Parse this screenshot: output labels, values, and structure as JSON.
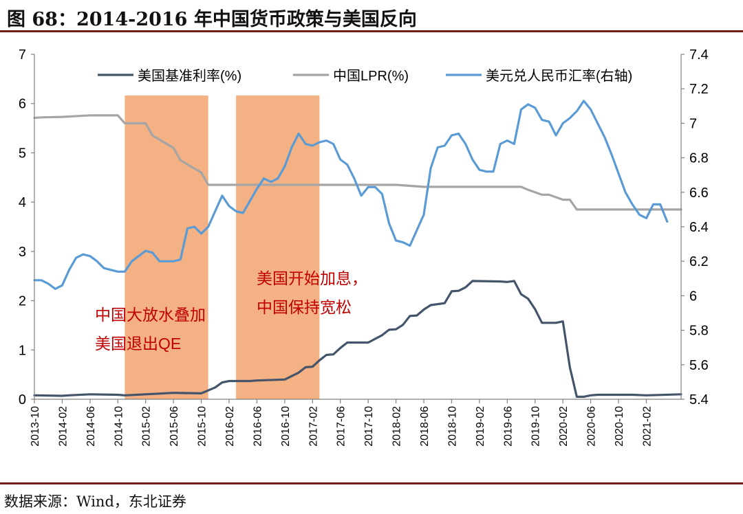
{
  "figure": {
    "title": "图 68：2014-2016 年中国货币政策与美国反向",
    "source": "数据来源：Wind，东北证券"
  },
  "colors": {
    "us_rate": "#44546a",
    "china_lpr": "#a5a5a5",
    "usdcny": "#5b9bd5",
    "shade": "#f4b183",
    "annotation": "#c00000",
    "frame": "#7a1a1a"
  },
  "chart_data": {
    "type": "line",
    "x_ticks": [
      "2013-10",
      "2014-02",
      "2014-06",
      "2014-10",
      "2015-02",
      "2015-06",
      "2015-10",
      "2016-02",
      "2016-06",
      "2016-10",
      "2017-02",
      "2017-06",
      "2017-10",
      "2018-02",
      "2018-06",
      "2018-10",
      "2019-02",
      "2019-06",
      "2019-10",
      "2020-02",
      "2020-06",
      "2020-10",
      "2021-02"
    ],
    "x_range": [
      "2013-10",
      "2021-07"
    ],
    "y_left": {
      "range": [
        0,
        7
      ],
      "ticks": [
        "0",
        "1",
        "2",
        "3",
        "4",
        "5",
        "6",
        "7"
      ]
    },
    "y_right": {
      "range": [
        5.4,
        7.4
      ],
      "ticks": [
        "5.4",
        "5.6",
        "5.8",
        "6",
        "6.2",
        "6.4",
        "6.6",
        "6.8",
        "7",
        "7.2",
        "7.4"
      ]
    },
    "grid": false,
    "legend_position": "top",
    "shaded_periods": [
      {
        "start": "2014-11",
        "end": "2015-11",
        "label_lines": [
          "中国大放水叠加",
          "美国退出QE"
        ],
        "label_side": "left"
      },
      {
        "start": "2016-03",
        "end": "2017-03",
        "label_lines": [
          "美国开始加息，",
          "中国保持宽松"
        ],
        "label_side": "inside"
      }
    ],
    "series": [
      {
        "name": "美国基准利率(%)",
        "axis": "left",
        "color_key": "us_rate",
        "points": [
          [
            "2013-10",
            0.08
          ],
          [
            "2014-02",
            0.07
          ],
          [
            "2014-03",
            0.08
          ],
          [
            "2014-06",
            0.1
          ],
          [
            "2014-10",
            0.09
          ],
          [
            "2014-11",
            0.08
          ],
          [
            "2015-02",
            0.1
          ],
          [
            "2015-06",
            0.13
          ],
          [
            "2015-10",
            0.12
          ],
          [
            "2015-12",
            0.24
          ],
          [
            "2016-01",
            0.34
          ],
          [
            "2016-02",
            0.37
          ],
          [
            "2016-05",
            0.37
          ],
          [
            "2016-06",
            0.38
          ],
          [
            "2016-10",
            0.4
          ],
          [
            "2016-12",
            0.54
          ],
          [
            "2017-01",
            0.65
          ],
          [
            "2017-02",
            0.66
          ],
          [
            "2017-03",
            0.79
          ],
          [
            "2017-04",
            0.9
          ],
          [
            "2017-05",
            0.91
          ],
          [
            "2017-06",
            1.04
          ],
          [
            "2017-07",
            1.15
          ],
          [
            "2017-10",
            1.15
          ],
          [
            "2017-12",
            1.3
          ],
          [
            "2018-01",
            1.41
          ],
          [
            "2018-02",
            1.42
          ],
          [
            "2018-03",
            1.51
          ],
          [
            "2018-04",
            1.69
          ],
          [
            "2018-05",
            1.7
          ],
          [
            "2018-06",
            1.82
          ],
          [
            "2018-07",
            1.91
          ],
          [
            "2018-09",
            1.95
          ],
          [
            "2018-10",
            2.19
          ],
          [
            "2018-11",
            2.2
          ],
          [
            "2018-12",
            2.27
          ],
          [
            "2019-01",
            2.4
          ],
          [
            "2019-05",
            2.39
          ],
          [
            "2019-06",
            2.38
          ],
          [
            "2019-07",
            2.4
          ],
          [
            "2019-08",
            2.13
          ],
          [
            "2019-09",
            2.04
          ],
          [
            "2019-10",
            1.83
          ],
          [
            "2019-11",
            1.55
          ],
          [
            "2020-01",
            1.55
          ],
          [
            "2020-02",
            1.58
          ],
          [
            "2020-03",
            0.65
          ],
          [
            "2020-04",
            0.05
          ],
          [
            "2020-05",
            0.05
          ],
          [
            "2020-06",
            0.08
          ],
          [
            "2020-07",
            0.09
          ],
          [
            "2020-10",
            0.09
          ],
          [
            "2020-12",
            0.09
          ],
          [
            "2021-02",
            0.08
          ],
          [
            "2021-07",
            0.1
          ]
        ]
      },
      {
        "name": "中国LPR(%)",
        "axis": "left",
        "color_key": "china_lpr",
        "points": [
          [
            "2013-10",
            5.71
          ],
          [
            "2013-11",
            5.72
          ],
          [
            "2014-02",
            5.73
          ],
          [
            "2014-06",
            5.76
          ],
          [
            "2014-10",
            5.76
          ],
          [
            "2014-11",
            5.6
          ],
          [
            "2014-12",
            5.6
          ],
          [
            "2015-02",
            5.6
          ],
          [
            "2015-03",
            5.35
          ],
          [
            "2015-06",
            5.1
          ],
          [
            "2015-07",
            4.85
          ],
          [
            "2015-10",
            4.6
          ],
          [
            "2015-11",
            4.35
          ],
          [
            "2016-02",
            4.35
          ],
          [
            "2016-10",
            4.35
          ],
          [
            "2017-02",
            4.35
          ],
          [
            "2017-06",
            4.35
          ],
          [
            "2017-10",
            4.35
          ],
          [
            "2018-02",
            4.35
          ],
          [
            "2018-06",
            4.31
          ],
          [
            "2018-10",
            4.31
          ],
          [
            "2019-02",
            4.31
          ],
          [
            "2019-06",
            4.31
          ],
          [
            "2019-08",
            4.31
          ],
          [
            "2019-09",
            4.25
          ],
          [
            "2019-10",
            4.2
          ],
          [
            "2019-11",
            4.15
          ],
          [
            "2019-12",
            4.15
          ],
          [
            "2020-02",
            4.05
          ],
          [
            "2020-03",
            4.05
          ],
          [
            "2020-04",
            3.85
          ],
          [
            "2020-06",
            3.85
          ],
          [
            "2020-10",
            3.85
          ],
          [
            "2021-02",
            3.85
          ],
          [
            "2021-07",
            3.85
          ]
        ]
      },
      {
        "name": "美元兑人民币汇率(右轴)",
        "axis": "right",
        "color_key": "usdcny",
        "points": [
          [
            "2013-10",
            6.09
          ],
          [
            "2013-11",
            6.09
          ],
          [
            "2013-12",
            6.07
          ],
          [
            "2014-01",
            6.04
          ],
          [
            "2014-02",
            6.06
          ],
          [
            "2014-03",
            6.15
          ],
          [
            "2014-04",
            6.22
          ],
          [
            "2014-05",
            6.24
          ],
          [
            "2014-06",
            6.23
          ],
          [
            "2014-07",
            6.2
          ],
          [
            "2014-08",
            6.16
          ],
          [
            "2014-09",
            6.15
          ],
          [
            "2014-10",
            6.14
          ],
          [
            "2014-11",
            6.14
          ],
          [
            "2014-12",
            6.2
          ],
          [
            "2015-01",
            6.23
          ],
          [
            "2015-02",
            6.26
          ],
          [
            "2015-03",
            6.25
          ],
          [
            "2015-04",
            6.2
          ],
          [
            "2015-05",
            6.2
          ],
          [
            "2015-06",
            6.2
          ],
          [
            "2015-07",
            6.21
          ],
          [
            "2015-08",
            6.39
          ],
          [
            "2015-09",
            6.4
          ],
          [
            "2015-10",
            6.36
          ],
          [
            "2015-11",
            6.4
          ],
          [
            "2015-12",
            6.49
          ],
          [
            "2016-01",
            6.58
          ],
          [
            "2016-02",
            6.52
          ],
          [
            "2016-03",
            6.49
          ],
          [
            "2016-04",
            6.48
          ],
          [
            "2016-05",
            6.55
          ],
          [
            "2016-06",
            6.62
          ],
          [
            "2016-07",
            6.68
          ],
          [
            "2016-08",
            6.66
          ],
          [
            "2016-09",
            6.68
          ],
          [
            "2016-10",
            6.75
          ],
          [
            "2016-11",
            6.86
          ],
          [
            "2016-12",
            6.94
          ],
          [
            "2017-01",
            6.88
          ],
          [
            "2017-02",
            6.87
          ],
          [
            "2017-03",
            6.89
          ],
          [
            "2017-04",
            6.9
          ],
          [
            "2017-05",
            6.88
          ],
          [
            "2017-06",
            6.79
          ],
          [
            "2017-07",
            6.76
          ],
          [
            "2017-08",
            6.68
          ],
          [
            "2017-09",
            6.58
          ],
          [
            "2017-10",
            6.63
          ],
          [
            "2017-11",
            6.63
          ],
          [
            "2017-12",
            6.59
          ],
          [
            "2018-01",
            6.42
          ],
          [
            "2018-02",
            6.32
          ],
          [
            "2018-03",
            6.31
          ],
          [
            "2018-04",
            6.29
          ],
          [
            "2018-05",
            6.38
          ],
          [
            "2018-06",
            6.47
          ],
          [
            "2018-07",
            6.74
          ],
          [
            "2018-08",
            6.86
          ],
          [
            "2018-09",
            6.87
          ],
          [
            "2018-10",
            6.93
          ],
          [
            "2018-11",
            6.94
          ],
          [
            "2018-12",
            6.88
          ],
          [
            "2019-01",
            6.79
          ],
          [
            "2019-02",
            6.73
          ],
          [
            "2019-03",
            6.72
          ],
          [
            "2019-04",
            6.72
          ],
          [
            "2019-05",
            6.88
          ],
          [
            "2019-06",
            6.9
          ],
          [
            "2019-07",
            6.88
          ],
          [
            "2019-08",
            7.08
          ],
          [
            "2019-09",
            7.11
          ],
          [
            "2019-10",
            7.09
          ],
          [
            "2019-11",
            7.02
          ],
          [
            "2019-12",
            7.01
          ],
          [
            "2020-01",
            6.93
          ],
          [
            "2020-02",
            7.0
          ],
          [
            "2020-03",
            7.03
          ],
          [
            "2020-04",
            7.07
          ],
          [
            "2020-05",
            7.13
          ],
          [
            "2020-06",
            7.08
          ],
          [
            "2020-07",
            7.0
          ],
          [
            "2020-08",
            6.92
          ],
          [
            "2020-09",
            6.82
          ],
          [
            "2020-10",
            6.71
          ],
          [
            "2020-11",
            6.6
          ],
          [
            "2020-12",
            6.53
          ],
          [
            "2021-01",
            6.47
          ],
          [
            "2021-02",
            6.45
          ],
          [
            "2021-03",
            6.53
          ],
          [
            "2021-04",
            6.53
          ],
          [
            "2021-05",
            6.43
          ]
        ]
      }
    ]
  }
}
